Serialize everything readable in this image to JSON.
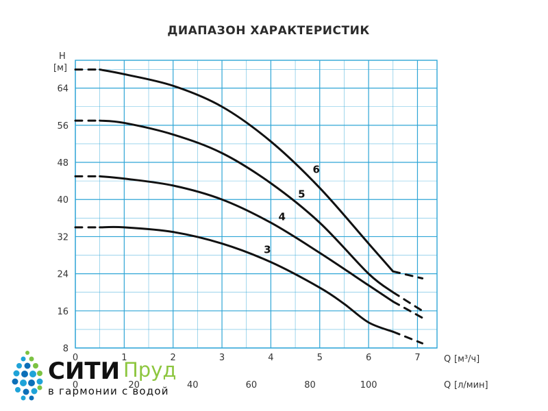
{
  "chart_data": {
    "type": "line",
    "title": "ДИАПАЗОН ХАРАКТЕРИСТИК",
    "y_label_top": "H",
    "y_unit": "[м]",
    "x_label": "Q",
    "x_unit": "[м³/ч]",
    "x2_label": "Q",
    "x2_unit": "[л/мин]",
    "xlim": [
      0,
      7.4
    ],
    "ylim": [
      8,
      70
    ],
    "x_ticks": [
      0,
      1,
      2,
      3,
      4,
      5,
      6,
      7
    ],
    "y_ticks": [
      8,
      16,
      24,
      32,
      40,
      48,
      56,
      64
    ],
    "x2_ticks": [
      0,
      20,
      40,
      60,
      80,
      100
    ],
    "grid": true,
    "series": [
      {
        "name": "3",
        "x": [
          0,
          0.5,
          1,
          2,
          3,
          4,
          5,
          5.5,
          6,
          6.5,
          7.1
        ],
        "y": [
          34,
          34,
          34,
          33,
          30.5,
          26.5,
          21,
          17.5,
          13.5,
          11.5,
          9
        ],
        "solid_x": [
          0.5,
          6.5
        ]
      },
      {
        "name": "4",
        "x": [
          0,
          0.5,
          1,
          2,
          3,
          4,
          5,
          6,
          6.5,
          7.1
        ],
        "y": [
          45,
          45,
          44.5,
          43,
          40,
          35,
          28.5,
          21.5,
          18,
          14.5
        ],
        "solid_x": [
          0.5,
          6.5
        ]
      },
      {
        "name": "5",
        "x": [
          0,
          0.5,
          1,
          2,
          3,
          4,
          5,
          6,
          6.5,
          7.1
        ],
        "y": [
          57,
          57,
          56.5,
          54,
          50,
          43.5,
          35,
          24,
          20,
          16
        ],
        "solid_x": [
          0.5,
          6.5
        ]
      },
      {
        "name": "6",
        "x": [
          0,
          0.5,
          1,
          2,
          3,
          4,
          5,
          6,
          6.5,
          7.1
        ],
        "y": [
          68,
          68,
          67,
          64.5,
          60,
          52.5,
          42.5,
          30.5,
          24.5,
          23
        ],
        "solid_x": [
          0.5,
          6.5
        ]
      }
    ]
  },
  "brand": {
    "name_main": "СИТИ",
    "name_accent": "Пруд",
    "tagline": "в гармонии с водой",
    "dot_colors": [
      "#1fa3d8",
      "#7cc242",
      "#0d6fb8"
    ]
  }
}
